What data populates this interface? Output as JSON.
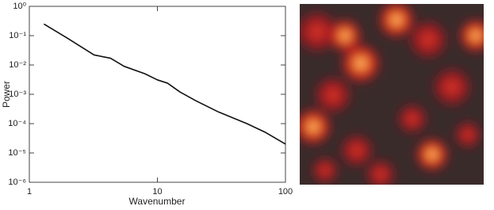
{
  "chart_data": {
    "type": "line",
    "xscale": "log",
    "yscale": "log",
    "x_label": "Wavenumber",
    "y_label": "Power",
    "xlim": [
      1,
      100
    ],
    "xticks": [
      1,
      10,
      100
    ],
    "ylim": [
      1e-06,
      1
    ],
    "yticks": [
      {
        "value": 1e-06,
        "label": "10⁻⁶"
      },
      {
        "value": 1e-05,
        "label": "10⁻⁵"
      },
      {
        "value": 0.0001,
        "label": "10⁻⁴"
      },
      {
        "value": 0.001,
        "label": "10⁻³"
      },
      {
        "value": 0.01,
        "label": "10⁻²"
      },
      {
        "value": 0.1,
        "label": "10⁻¹"
      },
      {
        "value": 1,
        "label": "10⁰"
      }
    ],
    "color": "#111111",
    "x": [
      1.3,
      2,
      3.2,
      4.3,
      5.5,
      8,
      10,
      12,
      15,
      20,
      30,
      50,
      70,
      100
    ],
    "values": [
      0.25,
      0.08,
      0.022,
      0.017,
      0.009,
      0.005,
      0.0031,
      0.0024,
      0.0012,
      0.0006,
      0.00025,
      0.0001,
      5e-05,
      2e-05
    ]
  }
}
